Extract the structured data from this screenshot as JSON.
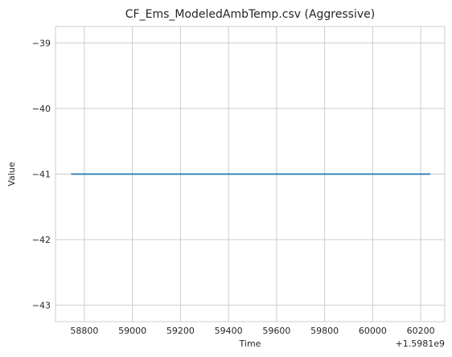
{
  "chart_data": {
    "type": "line",
    "title": "CF_Ems_ModeledAmbTemp.csv (Aggressive)",
    "xlabel": "Time",
    "ylabel": "Value",
    "x_offset_label": "+1.5981e9",
    "xlim": [
      58680,
      60300
    ],
    "ylim": [
      -43.25,
      -38.75
    ],
    "x_ticks": [
      58800,
      59000,
      59200,
      59400,
      59600,
      59800,
      60000,
      60200
    ],
    "x_tick_labels": [
      "58800",
      "59000",
      "59200",
      "59400",
      "59600",
      "59800",
      "60000",
      "60200"
    ],
    "y_ticks": [
      -39,
      -40,
      -41,
      -42,
      -43
    ],
    "y_tick_labels": [
      "−39",
      "−40",
      "−41",
      "−42",
      "−43"
    ],
    "grid": true,
    "series": [
      {
        "color": "#1f77b4",
        "x": [
          58745,
          60240
        ],
        "y": [
          -41,
          -41
        ]
      }
    ]
  }
}
